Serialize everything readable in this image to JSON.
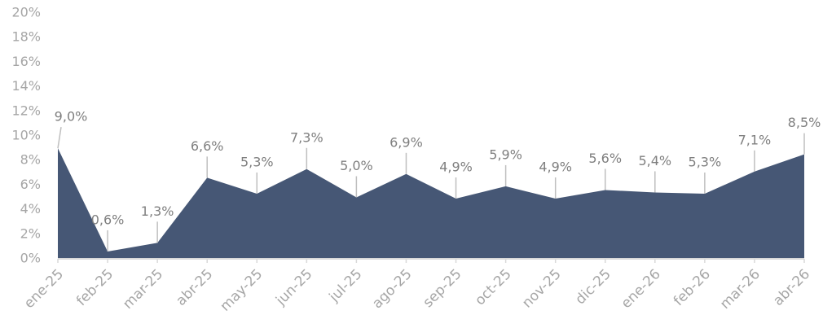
{
  "chart_data": {
    "type": "area",
    "categories": [
      "ene-25",
      "feb-25",
      "mar-25",
      "abr-25",
      "may-25",
      "jun-25",
      "jul-25",
      "ago-25",
      "sep-25",
      "oct-25",
      "nov-25",
      "dic-25",
      "ene-26",
      "feb-26",
      "mar-26",
      "abr-26"
    ],
    "values": [
      9.0,
      0.6,
      1.3,
      6.6,
      5.3,
      7.3,
      5.0,
      6.9,
      4.9,
      5.9,
      4.9,
      5.6,
      5.4,
      5.3,
      7.1,
      8.5
    ],
    "value_labels": [
      "9,0%",
      "0,6%",
      "1,3%",
      "6,6%",
      "5,3%",
      "7,3%",
      "5,0%",
      "6,9%",
      "4,9%",
      "5,9%",
      "4,9%",
      "5,6%",
      "5,4%",
      "5,3%",
      "7,1%",
      "8,5%"
    ],
    "color": "#465775",
    "ylim": [
      0,
      20
    ],
    "yticks": [
      {
        "value": 0,
        "label": "0%"
      },
      {
        "value": 2,
        "label": "2%"
      },
      {
        "value": 4,
        "label": "4%"
      },
      {
        "value": 6,
        "label": "6%"
      },
      {
        "value": 8,
        "label": "8%"
      },
      {
        "value": 10,
        "label": "10%"
      },
      {
        "value": 12,
        "label": "12%"
      },
      {
        "value": 14,
        "label": "14%"
      },
      {
        "value": 16,
        "label": "16%"
      },
      {
        "value": 18,
        "label": "18%"
      },
      {
        "value": 20,
        "label": "20%"
      }
    ],
    "grid": false
  }
}
